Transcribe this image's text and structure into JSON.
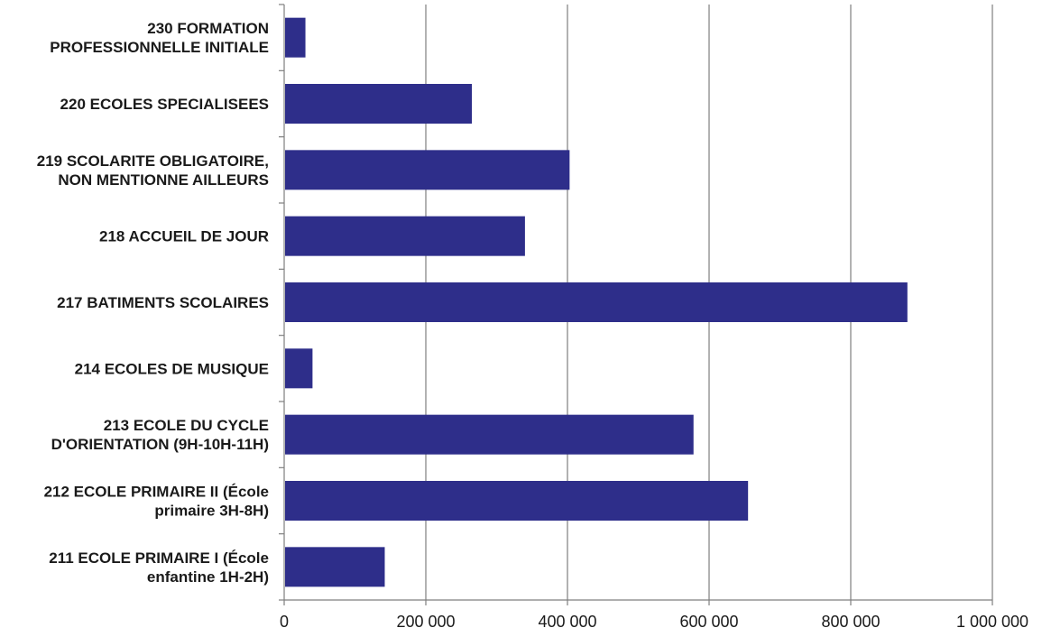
{
  "chart_data": {
    "type": "bar",
    "orientation": "horizontal",
    "categories": [
      [
        "230 FORMATION",
        "PROFESSIONNELLE INITIALE"
      ],
      [
        "220 ECOLES SPECIALISEES"
      ],
      [
        "219 SCOLARITE OBLIGATOIRE,",
        "NON MENTIONNE AILLEURS"
      ],
      [
        "218 ACCUEIL DE JOUR"
      ],
      [
        "217 BATIMENTS SCOLAIRES"
      ],
      [
        "214 ECOLES DE MUSIQUE"
      ],
      [
        "213 ECOLE DU CYCLE",
        "D'ORIENTATION (9H-10H-11H)"
      ],
      [
        "212 ECOLE PRIMAIRE II (École",
        "primaire 3H-8H)"
      ],
      [
        "211 ECOLE PRIMAIRE I (École",
        "enfantine 1H-2H)"
      ]
    ],
    "values": [
      30000,
      265000,
      403000,
      340000,
      880000,
      40000,
      578000,
      655000,
      142000
    ],
    "xlim": [
      0,
      1000000
    ],
    "xticks": [
      0,
      200000,
      400000,
      600000,
      800000,
      1000000
    ],
    "xtick_labels": [
      "0",
      "200 000",
      "400 000",
      "600 000",
      "800 000",
      "1 000 000"
    ],
    "grid": "vertical",
    "bar_color": "#2e2e8a",
    "grid_color": "#7f7f7f",
    "title": "",
    "xlabel": "",
    "ylabel": ""
  }
}
